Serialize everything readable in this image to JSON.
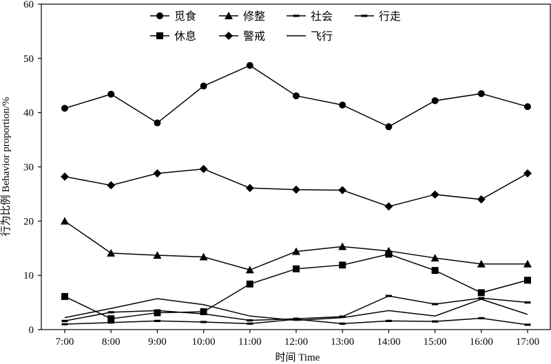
{
  "chart_data": {
    "type": "line",
    "xlabel": "时间 Time",
    "ylabel": "行为比例 Behavior proportion/%",
    "ylim": [
      0,
      60
    ],
    "yticks": [
      0,
      10,
      20,
      30,
      40,
      50,
      60
    ],
    "categories": [
      "7:00",
      "8:00",
      "9:00",
      "10:00",
      "11:00",
      "12:00",
      "13:00",
      "14:00",
      "15:00",
      "16:00",
      "17:00"
    ],
    "grid": false,
    "legend_position": "top",
    "series": [
      {
        "name": "觅食",
        "marker": "circle",
        "values": [
          40.8,
          43.4,
          38.1,
          44.9,
          48.7,
          43.1,
          41.4,
          37.4,
          42.2,
          43.5,
          41.1
        ]
      },
      {
        "name": "修整",
        "marker": "triangle",
        "values": [
          20.0,
          14.1,
          13.7,
          13.4,
          11.0,
          14.4,
          15.3,
          14.5,
          13.2,
          12.1,
          12.1
        ]
      },
      {
        "name": "社会",
        "marker": "dash",
        "values": [
          1.6,
          3.2,
          3.5,
          2.9,
          1.7,
          2.0,
          2.4,
          6.2,
          4.7,
          5.8,
          5.0
        ]
      },
      {
        "name": "行走",
        "marker": "dash",
        "values": [
          1.0,
          1.3,
          1.6,
          1.4,
          1.1,
          1.9,
          1.1,
          1.6,
          1.5,
          2.1,
          0.9
        ]
      },
      {
        "name": "休息",
        "marker": "square",
        "values": [
          6.1,
          2.0,
          3.1,
          3.3,
          8.4,
          11.2,
          11.9,
          13.9,
          10.9,
          6.8,
          9.1
        ]
      },
      {
        "name": "警戒",
        "marker": "diamond",
        "values": [
          28.2,
          26.6,
          28.8,
          29.6,
          26.1,
          25.8,
          25.7,
          22.7,
          24.9,
          24.0,
          28.8
        ]
      },
      {
        "name": "飞行",
        "marker": "none",
        "values": [
          2.2,
          3.9,
          5.7,
          4.6,
          2.5,
          1.7,
          2.2,
          3.5,
          2.5,
          5.6,
          2.8
        ]
      }
    ]
  }
}
